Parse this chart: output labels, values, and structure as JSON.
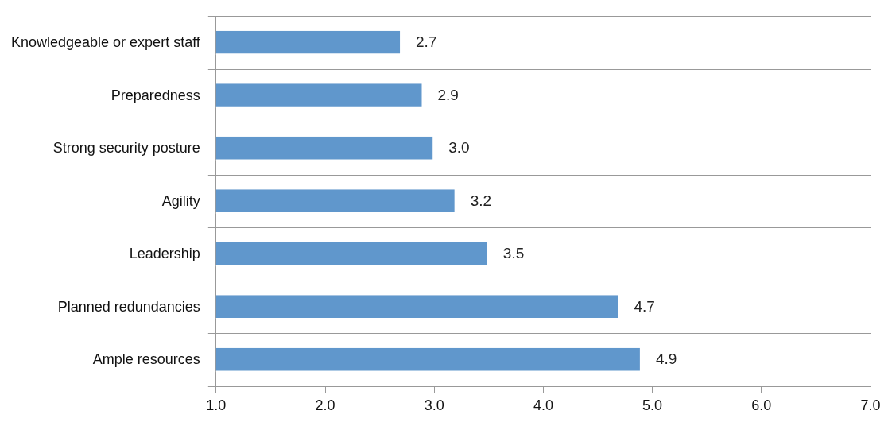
{
  "chart_data": {
    "type": "bar",
    "orientation": "horizontal",
    "categories": [
      "Knowledgeable or expert staff",
      "Preparedness",
      "Strong security posture",
      "Agility",
      "Leadership",
      "Planned redundancies",
      "Ample resources"
    ],
    "values": [
      2.7,
      2.9,
      3.0,
      3.2,
      3.5,
      4.7,
      4.9
    ],
    "value_labels": [
      "2.7",
      "2.9",
      "3.0",
      "3.2",
      "3.5",
      "4.7",
      "4.9"
    ],
    "color": "#6097cc",
    "xlim": [
      1,
      7
    ],
    "xticks": [
      {
        "value": 1,
        "label": "1.0"
      },
      {
        "value": 2,
        "label": "2.0"
      },
      {
        "value": 3,
        "label": "3.0"
      },
      {
        "value": 4,
        "label": "4.0"
      },
      {
        "value": 5,
        "label": "5.0"
      },
      {
        "value": 6,
        "label": "6.0"
      },
      {
        "value": 7,
        "label": "7.0"
      }
    ],
    "grid": "y",
    "legend": false
  }
}
